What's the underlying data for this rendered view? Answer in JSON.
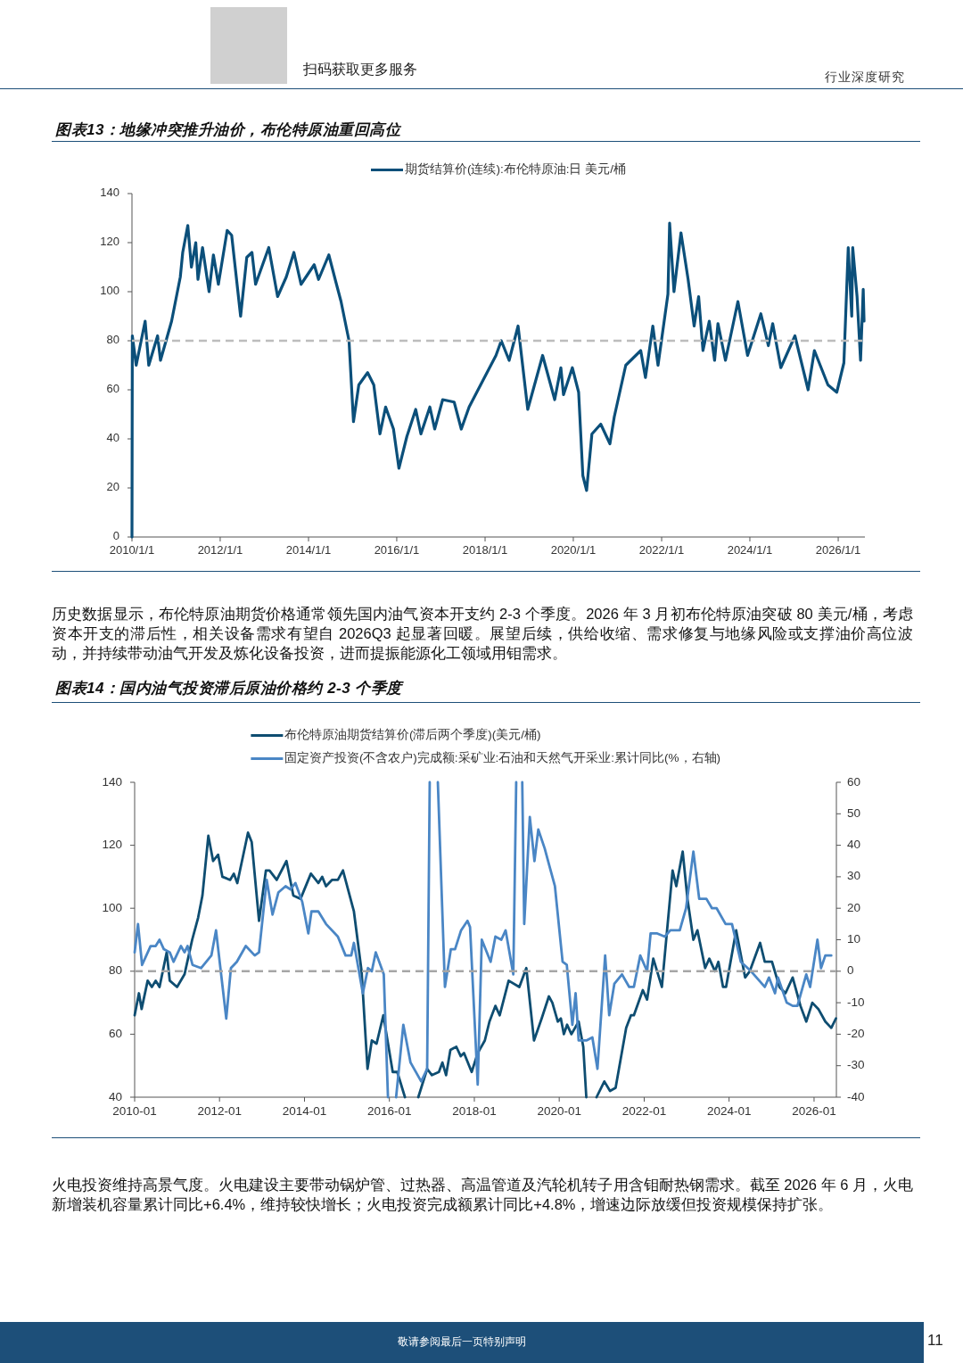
{
  "chart_data": [
    {
      "type": "line",
      "title": "图表13：地缘冲突推升油价，布伦特原油重回高位",
      "xlim": [
        "2010-01-01",
        "2026-08-10"
      ],
      "xticks": [
        {
          "value": "2010-01-01",
          "label": "2010/1/1"
        },
        {
          "value": "2012-01-01",
          "label": "2012/1/1"
        },
        {
          "value": "2014-01-01",
          "label": "2014/1/1"
        },
        {
          "value": "2016-01-01",
          "label": "2016/1/1"
        },
        {
          "value": "2018-01-01",
          "label": "2018/1/1"
        },
        {
          "value": "2020-01-01",
          "label": "2020/1/1"
        },
        {
          "value": "2022-01-01",
          "label": "2022/1/1"
        },
        {
          "value": "2024-01-01",
          "label": "2024/1/1"
        },
        {
          "value": "2026-01-01",
          "label": "2026/1/1"
        }
      ],
      "ylim": [
        0,
        140
      ],
      "yticks": [
        0,
        20,
        40,
        60,
        80,
        100,
        120,
        140
      ],
      "legend": "top",
      "series": [
        {
          "name": "期货结算价(连续):布伦特原油:日 美元/桶",
          "color": "#0b4f7a",
          "x": [
            "2010-01-01",
            "2010-01-04",
            "2010-02-05",
            "2010-04-20",
            "2010-05-20",
            "2010-08-01",
            "2010-08-25",
            "2010-11-25",
            "2011-02-05",
            "2011-02-25",
            "2011-04-08",
            "2011-05-08",
            "2011-06-13",
            "2011-07-01",
            "2011-08-08",
            "2011-10-01",
            "2011-11-06",
            "2011-12-17",
            "2012-02-28",
            "2012-04-05",
            "2012-06-18",
            "2012-08-08",
            "2012-09-20",
            "2012-10-20",
            "2013-02-06",
            "2013-04-20",
            "2013-07-01",
            "2013-09-02",
            "2013-10-31",
            "2014-02-17",
            "2014-03-25",
            "2014-06-18",
            "2014-08-15",
            "2014-09-27",
            "2014-12-02",
            "2015-01-08",
            "2015-02-21",
            "2015-05-05",
            "2015-06-25",
            "2015-08-15",
            "2015-10-01",
            "2015-12-05",
            "2016-01-19",
            "2016-03-25",
            "2016-06-06",
            "2016-07-19",
            "2016-10-01",
            "2016-11-10",
            "2017-01-15",
            "2017-04-20",
            "2017-06-18",
            "2017-08-22",
            "2017-12-16",
            "2018-04-01",
            "2018-05-15",
            "2018-07-19",
            "2018-10-01",
            "2018-12-20",
            "2019-04-22",
            "2019-07-31",
            "2019-09-20",
            "2019-10-12",
            "2019-12-24",
            "2020-02-14",
            "2020-03-20",
            "2020-04-20",
            "2020-06-03",
            "2020-08-15",
            "2020-10-30",
            "2020-12-05",
            "2021-03-10",
            "2021-07-12",
            "2021-08-20",
            "2021-10-20",
            "2021-12-02",
            "2022-02-22",
            "2022-03-08",
            "2022-04-13",
            "2022-06-10",
            "2022-08-08",
            "2022-09-27",
            "2022-11-03",
            "2022-12-09",
            "2023-01-30",
            "2023-03-15",
            "2023-04-12",
            "2023-06-13",
            "2023-09-24",
            "2023-12-13",
            "2024-04-01",
            "2024-06-02",
            "2024-07-08",
            "2024-09-13",
            "2025-01-08",
            "2025-04-27",
            "2025-06-18",
            "2025-10-08",
            "2025-12-20",
            "2026-02-17",
            "2026-03-25",
            "2026-04-23",
            "2026-05-01",
            "2026-06-06",
            "2026-07-05",
            "2026-07-27",
            "2026-08-03"
          ],
          "values": [
            0,
            82,
            70,
            88,
            70,
            82,
            72,
            88,
            106,
            116,
            127,
            110,
            120,
            105,
            118,
            100,
            115,
            103,
            125,
            123,
            90,
            114,
            116,
            103,
            118,
            98,
            106,
            116,
            103,
            111,
            105,
            115,
            104,
            96,
            80,
            47,
            62,
            67,
            62,
            42,
            53,
            44,
            28,
            41,
            52,
            42,
            53,
            44,
            56,
            55,
            44,
            53,
            64,
            74,
            80,
            72,
            86,
            52,
            74,
            56,
            69,
            58,
            69,
            59,
            25,
            19,
            42,
            46,
            38,
            49,
            70,
            76,
            65,
            86,
            70,
            99,
            128,
            100,
            124,
            105,
            86,
            98,
            76,
            88,
            72,
            87,
            72,
            96,
            74,
            91,
            78,
            87,
            69,
            82,
            60,
            76,
            62,
            59,
            71,
            118,
            90,
            118,
            98,
            72,
            101,
            88
          ]
        }
      ],
      "ref_lines": [
        {
          "axis": "y",
          "value": 80,
          "color": "#bdbdbd",
          "line_style": "dashed"
        }
      ],
      "annotations": [
        "扫码获取更多服务",
        "行业深度研究",
        "历史数据显示，布伦特原油期货价格通常领先国内油气资本开支约 2-3 个季度。2026 年 3 月初布伦特原油突破 80 美元/桶，考虑资本开支的滞后性，相关设备需求有望自 2026Q3 起显著回暖。展望后续，供给收缩、需求修复与地缘风险或支撑油价高位波动，并持续带动油气开发及炼化设备投资，进而提振能源化工领域用钼需求。"
      ]
    },
    {
      "type": "line",
      "title": "图表14：国内油气投资滞后原油价格约 2-3 个季度",
      "xlim": [
        "2010-01-01",
        "2026-07-12"
      ],
      "xticks": [
        "2010-01",
        "2012-01",
        "2014-01",
        "2016-01",
        "2018-01",
        "2020-01",
        "2022-01",
        "2024-01",
        "2026-01"
      ],
      "ylim": [
        40,
        140
      ],
      "yticks": [
        40,
        60,
        80,
        100,
        120,
        140
      ],
      "y2lim": [
        -40,
        60
      ],
      "y2ticks": [
        -40,
        -30,
        -20,
        -10,
        0,
        10,
        20,
        30,
        40,
        50,
        60
      ],
      "legend": "top",
      "series": [
        {
          "name": "布伦特原油期货结算价(滞后两个季度)(美元/桶)",
          "color": "#0e4d71",
          "x": [
            "2010-01-01",
            "2010-02-07",
            "2010-03-02",
            "2010-04-23",
            "2010-05-29",
            "2010-07-01",
            "2010-08-03",
            "2010-10-04",
            "2010-10-30",
            "2011-01-01",
            "2011-03-06",
            "2011-05-11",
            "2011-07-01",
            "2011-08-07",
            "2011-09-27",
            "2011-11-07",
            "2011-12-20",
            "2012-01-26",
            "2012-04-01",
            "2012-05-03",
            "2012-06-02",
            "2012-09-02",
            "2012-10-04",
            "2012-12-06",
            "2013-02-03",
            "2013-03-06",
            "2013-05-07",
            "2013-07-30",
            "2013-09-27",
            "2013-11-28",
            "2014-02-25",
            "2014-04-30",
            "2014-06-02",
            "2014-07-05",
            "2014-08-25",
            "2014-10-15",
            "2014-11-28",
            "2015-03-02",
            "2015-05-07",
            "2015-06-27",
            "2015-08-03",
            "2015-09-13",
            "2015-11-10",
            "2016-01-30",
            "2016-03-09",
            "2016-05-14",
            "2016-07-01",
            "2016-09-06",
            "2016-11-21",
            "2017-01-01",
            "2017-03-02",
            "2017-04-01",
            "2017-05-03",
            "2017-06-09",
            "2017-07-30",
            "2017-09-06",
            "2017-10-04",
            "2017-12-09",
            "2018-01-30",
            "2018-04-01",
            "2018-05-11",
            "2018-07-01",
            "2018-08-07",
            "2018-10-23",
            "2019-01-23",
            "2019-03-24",
            "2019-05-29",
            "2019-08-03",
            "2019-10-04",
            "2019-11-03",
            "2019-12-20",
            "2020-01-15",
            "2020-02-10",
            "2020-03-09",
            "2020-04-15",
            "2020-06-16",
            "2020-07-26",
            "2020-08-21",
            "2020-10-01",
            "2020-11-17",
            "2021-01-23",
            "2021-03-13",
            "2021-04-30",
            "2021-07-30",
            "2021-09-09",
            "2021-10-04",
            "2021-12-20",
            "2022-01-26",
            "2022-03-20",
            "2022-06-02",
            "2022-09-02",
            "2022-10-04",
            "2022-11-28",
            "2023-01-08",
            "2023-02-28",
            "2023-04-04",
            "2023-06-09",
            "2023-07-15",
            "2023-09-02",
            "2023-10-01",
            "2023-11-10",
            "2023-12-06",
            "2024-03-02",
            "2024-05-18",
            "2024-06-27",
            "2024-09-24",
            "2024-11-03",
            "2025-01-04",
            "2025-03-09",
            "2025-04-30",
            "2025-07-01",
            "2025-09-06",
            "2025-10-26",
            "2025-12-17",
            "2026-02-07",
            "2026-04-08",
            "2026-05-29",
            "2026-07-08"
          ],
          "values": [
            66,
            73,
            68,
            77,
            75,
            77,
            75,
            86,
            77,
            75,
            79,
            90,
            97,
            104,
            123,
            115,
            117,
            110,
            109,
            111,
            108,
            124,
            121,
            96,
            112,
            112,
            109,
            115,
            104,
            103,
            111,
            108,
            110,
            107,
            109,
            109,
            112,
            99,
            80,
            49,
            58,
            57,
            66,
            48,
            48,
            40,
            null,
            40,
            49,
            47,
            48,
            51,
            47,
            55,
            56,
            53,
            54,
            48,
            54,
            58,
            64,
            69,
            66,
            77,
            75,
            81,
            58,
            65,
            72,
            70,
            64,
            65,
            60,
            63,
            60,
            64,
            56,
            40,
            null,
            40,
            45,
            42,
            43,
            62,
            66,
            66,
            74,
            71,
            84,
            75,
            112,
            107,
            118,
            103,
            90,
            93,
            81,
            84,
            80,
            83,
            75,
            75,
            93,
            78,
            80,
            89,
            83,
            83,
            75,
            73,
            78,
            69,
            64,
            70,
            68,
            64,
            62,
            65
          ]
        },
        {
          "name": "固定资产投资(不含农户)完成额:采矿业:石油和天然气开采业:累计同比(%，右轴)",
          "color": "#4a86c5",
          "axis": "y2",
          "x": [
            "2010-01-01",
            "2010-01-30",
            "2010-03-06",
            "2010-05-18",
            "2010-07-01",
            "2010-08-03",
            "2010-09-09",
            "2010-10-30",
            "2010-12-02",
            "2011-02-03",
            "2011-03-06",
            "2011-04-01",
            "2011-05-14",
            "2011-07-26",
            "2011-10-23",
            "2011-12-02",
            "2012-02-28",
            "2012-04-08",
            "2012-05-29",
            "2012-08-14",
            "2012-10-30",
            "2012-12-06",
            "2013-02-10",
            "2013-04-01",
            "2013-05-21",
            "2013-07-22",
            "2013-09-02",
            "2013-10-15",
            "2013-12-13",
            "2014-02-03",
            "2014-03-02",
            "2014-04-30",
            "2014-07-05",
            "2014-10-15",
            "2014-12-20",
            "2015-02-07",
            "2015-03-02",
            "2015-05-18",
            "2015-07-01",
            "2015-08-03",
            "2015-09-06",
            "2015-11-14",
            "2015-12-20",
            "2016-01-23",
            "2016-02-28",
            "2016-04-30",
            "2016-07-01",
            "2016-10-01",
            "2016-11-21",
            "2016-12-13",
            "2017-01-19",
            "2017-02-21",
            "2017-04-23",
            "2017-06-13",
            "2017-07-19",
            "2017-09-09",
            "2017-11-03",
            "2017-11-25",
            "2018-01-30",
            "2018-03-06",
            "2018-05-21",
            "2018-07-01",
            "2018-08-21",
            "2018-09-27",
            "2018-12-02",
            "2018-12-27",
            "2019-01-23",
            "2019-02-17",
            "2019-03-06",
            "2019-04-23",
            "2019-06-02",
            "2019-07-05",
            "2019-08-29",
            "2019-10-12",
            "2019-11-25",
            "2020-01-30",
            "2020-03-06",
            "2020-04-23",
            "2020-05-21",
            "2020-06-16",
            "2020-08-21",
            "2020-10-12",
            "2020-11-25",
            "2021-01-30",
            "2021-03-06",
            "2021-04-19",
            "2021-06-24",
            "2021-08-25",
            "2021-10-04",
            "2021-11-28",
            "2022-01-26",
            "2022-02-25",
            "2022-04-23",
            "2022-06-27",
            "2022-08-14",
            "2022-11-03",
            "2022-12-27",
            "2023-02-28",
            "2023-04-19",
            "2023-06-20",
            "2023-08-07",
            "2023-09-16",
            "2023-12-02",
            "2024-01-26",
            "2024-04-11",
            "2024-07-08",
            "2024-11-03",
            "2024-12-09",
            "2025-01-30",
            "2025-02-25",
            "2025-05-11",
            "2025-07-01",
            "2025-08-11",
            "2025-10-26",
            "2025-11-28",
            "2026-01-30",
            "2026-03-02",
            "2026-04-08",
            "2026-05-29"
          ],
          "values": [
            6,
            15,
            2,
            8,
            8,
            10,
            7,
            6,
            3,
            8,
            6,
            8,
            2,
            1,
            5,
            13,
            -15,
            1,
            3,
            8,
            5,
            6,
            29,
            18,
            25,
            27,
            26,
            28,
            22,
            12,
            19,
            19,
            15,
            11,
            5,
            5,
            9,
            -7,
            1,
            0,
            6,
            -1,
            -40,
            null,
            -40,
            -17,
            -29,
            -35,
            -31,
            60,
            null,
            60,
            -5,
            7,
            7,
            13,
            16,
            14,
            -36,
            10,
            3,
            11,
            10,
            13,
            -1,
            60,
            null,
            60,
            15,
            49,
            35,
            45,
            39,
            33,
            27,
            3,
            2,
            -17,
            -7,
            -22,
            -22,
            -21,
            -31,
            5,
            -14,
            -4,
            -1,
            -5,
            -5,
            5,
            0,
            12,
            12,
            11,
            13,
            13,
            20,
            38,
            23,
            23,
            20,
            20,
            15,
            15,
            3,
            0,
            -5,
            -2,
            -7,
            -2,
            -10,
            -11,
            -11,
            -1,
            -5,
            10,
            1,
            5,
            5
          ]
        }
      ],
      "ref_lines": [
        {
          "axis": "y2",
          "value": 0,
          "color": "#a6a6a6",
          "line_style": "dashed"
        }
      ],
      "annotations": [
        "火电投资维持高景气度。火电建设主要带动锅炉管、过热器、高温管道及汽轮机转子用含钼耐热钢需求。截至 2026 年 6 月，火电新增装机容量累计同比+6.4%，维持较快增长；火电投资完成额累计同比+4.8%，增速边际放缓但投资规模保持扩张。",
        "敬请参阅最后一页特别声明",
        "11"
      ]
    }
  ]
}
